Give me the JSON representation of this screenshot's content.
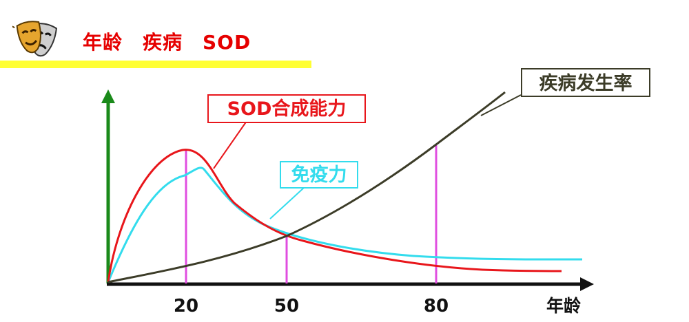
{
  "slide": {
    "title": "年龄　疾病　SOD"
  },
  "axes": {
    "x_label": "年龄",
    "ticks": [
      {
        "value": 20,
        "label": "20"
      },
      {
        "value": 50,
        "label": "50"
      },
      {
        "value": 80,
        "label": "80"
      }
    ]
  },
  "curves": [
    {
      "id": "sod",
      "name": "SOD合成能力",
      "color": "#e8161b"
    },
    {
      "id": "immunity",
      "name": "免疫力",
      "color": "#33dced"
    },
    {
      "id": "disease",
      "name": "疾病发生率",
      "color": "#3c3c28"
    }
  ],
  "colors": {
    "x_axis": "#111111",
    "y_axis": "#1a8a1a",
    "markers": "#e04ee0",
    "title_red": "#e60000",
    "title_rule": "#ffff33"
  },
  "logo_icon": "theater-masks-icon"
}
